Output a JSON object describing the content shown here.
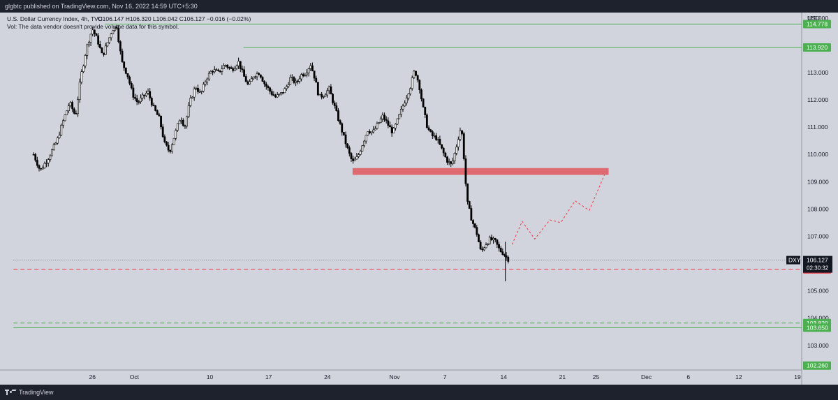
{
  "header": {
    "publisher": "glgbtc published on TradingView.com, Nov 16, 2022 14:59 UTC+5:30"
  },
  "chart_data": {
    "type": "candlestick",
    "title": "U.S. Dollar Currency Index, 4h, TVC",
    "ohlc_text": "O106.147 H106.320 L106.042 C106.127 −0.016 (−0.02%)",
    "volume_note": "Vol: The data vendor doesn't provide volume data for this symbol.",
    "currency": "USD",
    "symbol": "DXY",
    "last_price": "106.127",
    "countdown": "02:30:32",
    "ylim": [
      102.1,
      115.2
    ],
    "y_ticks": [
      103,
      104,
      105,
      106,
      107,
      108,
      109,
      110,
      111,
      112,
      113,
      114,
      115
    ],
    "y_tick_labels": [
      "103.000",
      "104.000",
      "105.000",
      "106.000",
      "107.000",
      "108.000",
      "109.000",
      "110.000",
      "111.000",
      "112.000",
      "113.000",
      "114.000",
      "115.000"
    ],
    "x_ticks": [
      {
        "label": "26",
        "day": 26
      },
      {
        "label": "Oct",
        "day": 31
      },
      {
        "label": "10",
        "day": 40
      },
      {
        "label": "17",
        "day": 47
      },
      {
        "label": "24",
        "day": 54
      },
      {
        "label": "Nov",
        "day": 62
      },
      {
        "label": "7",
        "day": 68
      },
      {
        "label": "14",
        "day": 75
      },
      {
        "label": "21",
        "day": 82
      },
      {
        "label": "25",
        "day": 86
      },
      {
        "label": "Dec",
        "day": 92
      },
      {
        "label": "6",
        "day": 97
      },
      {
        "label": "12",
        "day": 103
      },
      {
        "label": "19",
        "day": 110
      }
    ],
    "price_path": [
      [
        19.0,
        110.0
      ],
      [
        19.8,
        109.4
      ],
      [
        20.8,
        109.9
      ],
      [
        21.8,
        110.5
      ],
      [
        22.6,
        111.3
      ],
      [
        23.3,
        111.9
      ],
      [
        24.0,
        111.4
      ],
      [
        24.6,
        112.8
      ],
      [
        25.3,
        113.9
      ],
      [
        26.0,
        114.6
      ],
      [
        26.6,
        114.2
      ],
      [
        27.2,
        113.6
      ],
      [
        27.8,
        114.1
      ],
      [
        28.4,
        114.6
      ],
      [
        28.9,
        114.7
      ],
      [
        29.5,
        113.4
      ],
      [
        30.2,
        112.9
      ],
      [
        30.8,
        112.2
      ],
      [
        31.4,
        111.9
      ],
      [
        32.0,
        112.1
      ],
      [
        32.6,
        112.3
      ],
      [
        33.3,
        111.7
      ],
      [
        34.0,
        111.3
      ],
      [
        34.6,
        110.4
      ],
      [
        35.2,
        110.1
      ],
      [
        35.9,
        110.8
      ],
      [
        36.5,
        111.4
      ],
      [
        37.0,
        111.0
      ],
      [
        37.6,
        111.9
      ],
      [
        38.3,
        112.5
      ],
      [
        38.9,
        112.2
      ],
      [
        39.6,
        112.8
      ],
      [
        40.3,
        113.1
      ],
      [
        41.0,
        113.0
      ],
      [
        41.8,
        113.3
      ],
      [
        42.6,
        113.1
      ],
      [
        43.4,
        113.4
      ],
      [
        44.0,
        112.9
      ],
      [
        44.6,
        112.5
      ],
      [
        45.2,
        112.9
      ],
      [
        45.9,
        113.0
      ],
      [
        46.5,
        112.6
      ],
      [
        47.2,
        112.3
      ],
      [
        47.8,
        112.1
      ],
      [
        48.4,
        112.2
      ],
      [
        49.0,
        112.4
      ],
      [
        49.6,
        112.8
      ],
      [
        50.3,
        112.6
      ],
      [
        50.8,
        112.9
      ],
      [
        51.4,
        113.0
      ],
      [
        52.0,
        113.3
      ],
      [
        52.5,
        112.8
      ],
      [
        53.0,
        112.1
      ],
      [
        53.6,
        112.2
      ],
      [
        54.2,
        112.4
      ],
      [
        54.8,
        111.8
      ],
      [
        55.4,
        111.2
      ],
      [
        56.0,
        110.6
      ],
      [
        56.5,
        110.1
      ],
      [
        57.0,
        109.7
      ],
      [
        57.6,
        109.9
      ],
      [
        58.2,
        110.4
      ],
      [
        58.8,
        110.9
      ],
      [
        59.4,
        110.8
      ],
      [
        60.0,
        111.1
      ],
      [
        60.6,
        111.4
      ],
      [
        61.2,
        111.1
      ],
      [
        61.8,
        110.8
      ],
      [
        62.3,
        111.2
      ],
      [
        62.9,
        111.7
      ],
      [
        63.4,
        112.1
      ],
      [
        63.9,
        112.5
      ],
      [
        64.4,
        113.1
      ],
      [
        64.9,
        112.6
      ],
      [
        65.4,
        111.7
      ],
      [
        65.9,
        111.0
      ],
      [
        66.4,
        110.7
      ],
      [
        67.0,
        110.6
      ],
      [
        67.6,
        110.2
      ],
      [
        68.2,
        109.8
      ],
      [
        68.8,
        109.6
      ],
      [
        69.3,
        110.2
      ],
      [
        69.8,
        110.9
      ],
      [
        70.1,
        110.7
      ],
      [
        70.4,
        109.2
      ],
      [
        70.7,
        108.2
      ],
      [
        71.2,
        107.6
      ],
      [
        71.8,
        107.1
      ],
      [
        72.3,
        106.4
      ],
      [
        72.8,
        106.7
      ],
      [
        73.4,
        106.9
      ],
      [
        74.0,
        106.8
      ],
      [
        74.5,
        106.5
      ],
      [
        74.9,
        106.4
      ],
      [
        75.4,
        106.2
      ],
      [
        75.7,
        106.13
      ]
    ],
    "lines": [
      {
        "price": 114.778,
        "label": "114.778",
        "style": "solid",
        "color": "#4caf50",
        "start_day": 27.5
      },
      {
        "price": 113.92,
        "label": "113.920",
        "style": "solid",
        "color": "#4caf50",
        "start_day": 44.0
      },
      {
        "price": 103.82,
        "label": "103.820",
        "style": "dashed",
        "color": "#4caf50",
        "start_day": 16.6
      },
      {
        "price": 103.65,
        "label": "103.650",
        "style": "solid",
        "color": "#4caf50",
        "start_day": 16.6
      },
      {
        "price": 105.788,
        "label": "105.788",
        "style": "dashed",
        "color": "#f23645",
        "start_day": 16.6
      },
      {
        "price": 106.127,
        "label": "106.127",
        "style": "dotted",
        "color": "#787b86",
        "start_day": 16.6
      }
    ],
    "extra_label": {
      "price": 102.26,
      "label": "102.260",
      "color": "#4caf50"
    },
    "zone": {
      "start_day": 57.0,
      "end_day": 87.5,
      "low": 109.25,
      "high": 109.5,
      "color": "#e06a72"
    },
    "projection_path": [
      [
        76.0,
        106.7
      ],
      [
        77.2,
        107.55
      ],
      [
        78.7,
        106.9
      ],
      [
        80.5,
        107.6
      ],
      [
        81.8,
        107.5
      ],
      [
        83.5,
        108.3
      ],
      [
        85.2,
        107.95
      ],
      [
        87.0,
        109.25
      ]
    ],
    "colors": {
      "background": "#d1d4dc",
      "text": "#131722",
      "candle": "#000000",
      "projection": "#f23645"
    }
  }
}
